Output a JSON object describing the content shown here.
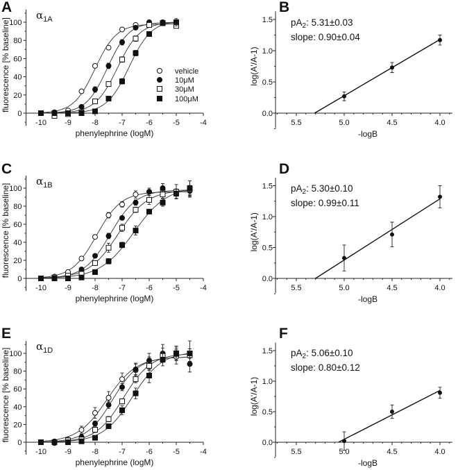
{
  "chart_data": [
    {
      "panel": "A",
      "type": "scatter",
      "receptor": {
        "symbol": "α",
        "subscript": "1A"
      },
      "xlabel": "phenylephrine (logM)",
      "ylabel": "fluorescence [% baseline]",
      "xlim": [
        -10.55,
        -4
      ],
      "ylim": [
        -14,
        114
      ],
      "xticks": [
        "-10",
        "-9",
        "-8",
        "-7",
        "-6",
        "-5",
        "-4"
      ],
      "yticks": [
        "0",
        "20",
        "40",
        "60",
        "80",
        "100"
      ],
      "x": [
        -10,
        -9.5,
        -9,
        -8.5,
        -8,
        -7.5,
        -7,
        -6.5,
        -6,
        -5.5,
        -5
      ],
      "legend": {
        "show": true,
        "placement": "right-middle"
      },
      "series": [
        {
          "name": "vehicle",
          "marker": "open-circle",
          "values": [
            0,
            -2,
            3,
            24,
            52,
            72,
            92,
            97,
            97,
            99,
            98
          ],
          "errors": [
            1,
            1,
            1,
            2,
            2,
            2,
            2,
            2,
            1,
            1,
            2
          ]
        },
        {
          "name": "10μM",
          "marker": "filled-circle",
          "values": [
            0,
            1,
            0,
            7,
            26,
            52,
            78,
            94,
            100,
            100,
            99
          ],
          "errors": [
            1,
            1,
            1,
            2,
            3,
            3,
            3,
            2,
            1,
            1,
            2
          ]
        },
        {
          "name": "30μM",
          "marker": "open-square",
          "values": [
            0,
            -3,
            -1,
            1,
            13,
            32,
            59,
            82,
            97,
            99,
            96
          ],
          "errors": [
            1,
            1,
            1,
            1,
            2,
            2,
            3,
            3,
            1,
            1,
            2
          ]
        },
        {
          "name": "100μM",
          "marker": "filled-square",
          "values": [
            0,
            0,
            0,
            0,
            2,
            16,
            35,
            66,
            87,
            99,
            100
          ],
          "errors": [
            1,
            1,
            1,
            1,
            1,
            2,
            3,
            3,
            2,
            1,
            4
          ]
        }
      ]
    },
    {
      "panel": "B",
      "type": "line",
      "xlabel": "-logB",
      "ylabel": "log(A'/A-1)",
      "xlim": [
        5.717,
        3.87
      ],
      "ylim": [
        -0.24,
        1.63
      ],
      "x_reversed": true,
      "xticks": [
        "5.5",
        "5.0",
        "4.5",
        "4.0"
      ],
      "yticks": [
        "0.0",
        "0.5",
        "1.0",
        "1.5"
      ],
      "x": [
        5.0,
        4.5,
        4.0
      ],
      "values": [
        0.27,
        0.73,
        1.17
      ],
      "errors": [
        0.07,
        0.08,
        0.08
      ],
      "fit": {
        "pA2": 5.31,
        "slope": 0.9
      },
      "annotation": {
        "pa_main": "pA",
        "pa_sub": "2",
        "pa_value": ": 5.31±0.03",
        "slope_text": "slope: 0.90±0.04"
      }
    },
    {
      "panel": "C",
      "type": "scatter",
      "receptor": {
        "symbol": "α",
        "subscript": "1B"
      },
      "xlabel": "phenylephrine (logM)",
      "ylabel": "fluorescence [% baseline]",
      "xlim": [
        -10.55,
        -4
      ],
      "ylim": [
        -14,
        114
      ],
      "xticks": [
        "-10",
        "-9",
        "-8",
        "-7",
        "-6",
        "-5",
        "-4"
      ],
      "yticks": [
        "0",
        "20",
        "40",
        "60",
        "80",
        "100"
      ],
      "x": [
        -10,
        -9.5,
        -9,
        -8.5,
        -8,
        -7.5,
        -7,
        -6.5,
        -6,
        -5.5,
        -5,
        -4.5
      ],
      "series": [
        {
          "name": "vehicle",
          "marker": "open-circle",
          "values": [
            0,
            2,
            7,
            22,
            46,
            70,
            82,
            93,
            96,
            98,
            96,
            97
          ],
          "errors": [
            1,
            1,
            1,
            2,
            2,
            3,
            3,
            4,
            4,
            3,
            3,
            4
          ]
        },
        {
          "name": "10μM",
          "marker": "filled-circle",
          "values": [
            0,
            0,
            2,
            10,
            25,
            47,
            67,
            84,
            96,
            100,
            95,
            97
          ],
          "errors": [
            1,
            1,
            1,
            2,
            2,
            3,
            2,
            3,
            4,
            5,
            4,
            6
          ]
        },
        {
          "name": "30μM",
          "marker": "open-square",
          "values": [
            0,
            1,
            3,
            5,
            17,
            34,
            56,
            76,
            87,
            93,
            96,
            99
          ],
          "errors": [
            1,
            1,
            1,
            1,
            2,
            5,
            4,
            3,
            5,
            4,
            8,
            9
          ]
        },
        {
          "name": "100μM",
          "marker": "filled-square",
          "values": [
            0,
            0,
            0,
            1,
            7,
            19,
            37,
            53,
            74,
            84,
            94,
            100
          ],
          "errors": [
            1,
            1,
            1,
            1,
            1,
            3,
            3,
            5,
            2,
            4,
            5,
            8
          ]
        }
      ]
    },
    {
      "panel": "D",
      "type": "line",
      "xlabel": "-logB",
      "ylabel": "log(A'/A-1)",
      "xlim": [
        5.717,
        3.87
      ],
      "ylim": [
        -0.24,
        1.63
      ],
      "x_reversed": true,
      "xticks": [
        "5.5",
        "5.0",
        "4.5",
        "4.0"
      ],
      "yticks": [
        "0.0",
        "0.5",
        "1.0",
        "1.5"
      ],
      "x": [
        5.0,
        4.5,
        4.0
      ],
      "values": [
        0.33,
        0.71,
        1.32
      ],
      "errors": [
        0.21,
        0.2,
        0.18
      ],
      "fit": {
        "pA2": 5.3,
        "slope": 0.99
      },
      "annotation": {
        "pa_main": "pA",
        "pa_sub": "2",
        "pa_value": ": 5.30±0.10",
        "slope_text": "slope: 0.99±0.11"
      }
    },
    {
      "panel": "E",
      "type": "scatter",
      "receptor": {
        "symbol": "α",
        "subscript": "1D"
      },
      "xlabel": "phenylephrine (logM)",
      "ylabel": "fluorescence [% baseline]",
      "xlim": [
        -10.55,
        -4
      ],
      "ylim": [
        -14,
        114
      ],
      "xticks": [
        "-10",
        "-9",
        "-8",
        "-7",
        "-6",
        "-5",
        "-4"
      ],
      "yticks": [
        "0",
        "20",
        "40",
        "60",
        "80",
        "100"
      ],
      "x": [
        -10,
        -9.5,
        -9,
        -8.5,
        -8,
        -7.5,
        -7,
        -6.5,
        -6,
        -5.5,
        -5,
        -4.5
      ],
      "series": [
        {
          "name": "vehicle",
          "marker": "open-circle",
          "values": [
            0,
            -1,
            3,
            14,
            33,
            50,
            71,
            81,
            89,
            98,
            96,
            97
          ],
          "errors": [
            1,
            1,
            1,
            4,
            6,
            7,
            7,
            8,
            7,
            8,
            8,
            8
          ]
        },
        {
          "name": "10μM",
          "marker": "filled-circle",
          "values": [
            0,
            1,
            1,
            6,
            21,
            42,
            62,
            82,
            92,
            100,
            100,
            88
          ],
          "errors": [
            1,
            1,
            1,
            3,
            3,
            4,
            4,
            6,
            8,
            10,
            8,
            9
          ]
        },
        {
          "name": "30μM",
          "marker": "open-square",
          "values": [
            0,
            0,
            2,
            3,
            14,
            26,
            46,
            71,
            86,
            97,
            99,
            98
          ],
          "errors": [
            1,
            1,
            1,
            1,
            3,
            3,
            3,
            4,
            5,
            5,
            7,
            7
          ]
        },
        {
          "name": "100μM",
          "marker": "filled-square",
          "values": [
            0,
            0,
            0,
            1,
            5,
            18,
            36,
            55,
            75,
            93,
            100,
            100
          ],
          "errors": [
            1,
            1,
            1,
            1,
            1,
            2,
            5,
            6,
            8,
            7,
            8,
            14
          ]
        }
      ]
    },
    {
      "panel": "F",
      "type": "line",
      "xlabel": "-logB",
      "ylabel": "log(A'/A-1)",
      "xlim": [
        5.717,
        3.87
      ],
      "ylim": [
        -0.24,
        1.63
      ],
      "x_reversed": true,
      "xticks": [
        "5.5",
        "5.0",
        "4.5",
        "4.0"
      ],
      "yticks": [
        "0.0",
        "0.5",
        "1.0",
        "1.5"
      ],
      "x": [
        5.0,
        4.5,
        4.0
      ],
      "values": [
        0.02,
        0.5,
        0.81
      ],
      "errors": [
        0.15,
        0.11,
        0.09
      ],
      "fit": {
        "pA2": 5.06,
        "slope": 0.8
      },
      "annotation": {
        "pa_main": "pA",
        "pa_sub": "2",
        "pa_value": ": 5.06±0.10",
        "slope_text": "slope: 0.80±0.12"
      }
    }
  ]
}
